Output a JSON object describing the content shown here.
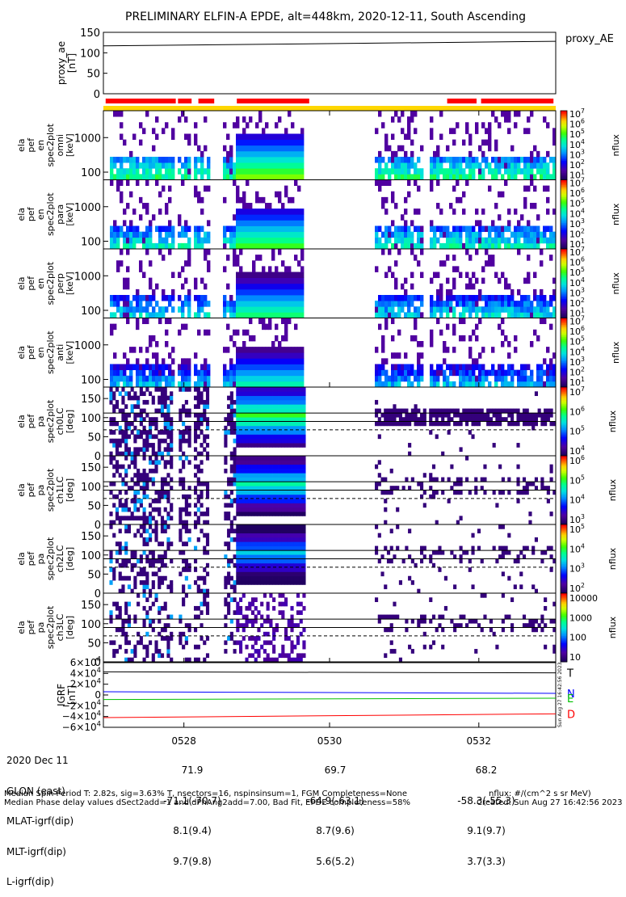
{
  "title": "PRELIMINARY ELFIN-A EPDE, alt=448km, 2020-12-11, South Ascending",
  "colors": {
    "bar_red": "#ff0000",
    "bar_yellow": "#ffd700",
    "T": "#000000",
    "N": "#0000ff",
    "E": "#00c000",
    "D": "#ff0000"
  },
  "chart_data": [
    {
      "type": "line",
      "panel": "proxy_ae",
      "ylabel": [
        "proxy_ae",
        "[nT]"
      ],
      "yticks": [
        "150",
        "100",
        "50",
        "0"
      ],
      "ylim": [
        0,
        150
      ],
      "series": [
        {
          "name": "proxy_AE",
          "x": [
            0,
            1
          ],
          "values": [
            117,
            128
          ]
        }
      ]
    },
    {
      "type": "heatmap",
      "panel": "energy spectrograms",
      "yscale": "log",
      "ylim": [
        60,
        6000
      ],
      "yticks": [
        "1000",
        "100"
      ],
      "ylabel": [
        "ela",
        "pef",
        "en",
        "spec2plot",
        "",
        "[keV]"
      ],
      "panel_subtitles": [
        "omni",
        "para",
        "perp",
        "anti"
      ],
      "colorbar": {
        "label": "nflux",
        "ticks": [
          "10^7",
          "10^6",
          "10^5",
          "10^4",
          "10^3",
          "10^2",
          "10^1"
        ]
      }
    },
    {
      "type": "heatmap",
      "panel": "pitch angle spectrograms",
      "ylim": [
        0,
        180
      ],
      "yticks": [
        "150",
        "100",
        "50",
        "0"
      ],
      "ylabel_prefix": [
        "ela",
        "pef",
        "pa",
        "spec2plot"
      ],
      "ylabel_unit": "[deg]",
      "channels": [
        "ch0LC",
        "ch1LC",
        "ch2LC",
        "ch3LC"
      ],
      "colorbars": [
        {
          "label": "nflux",
          "ticks": [
            "10^7",
            "10^6",
            "10^5",
            "10^4"
          ]
        },
        {
          "label": "nflux",
          "ticks": [
            "10^6",
            "10^5",
            "10^4",
            "10^3"
          ]
        },
        {
          "label": "nflux",
          "ticks": [
            "10^5",
            "10^4",
            "10^3",
            "10^2"
          ]
        },
        {
          "label": "nflux",
          "ticks": [
            "10000",
            "1000",
            "100",
            "10"
          ]
        }
      ]
    },
    {
      "type": "line",
      "panel": "IGRF",
      "ylabel": [
        "IGRF",
        "[nT]"
      ],
      "yticks": [
        "6×10^4",
        "4×10^4",
        "2×10^4",
        "0",
        "−2×10^4",
        "−4×10^4",
        "−6×10^4"
      ],
      "ylim": [
        -60000,
        60000
      ],
      "series": [
        {
          "name": "T",
          "x": [
            0,
            1
          ],
          "values": [
            43000,
            41000
          ]
        },
        {
          "name": "N",
          "x": [
            0,
            1
          ],
          "values": [
            6000,
            3000
          ]
        },
        {
          "name": "E",
          "x": [
            0,
            1
          ],
          "values": [
            -8500,
            -6000
          ]
        },
        {
          "name": "D",
          "x": [
            0,
            1
          ],
          "values": [
            -42000,
            -35000
          ]
        }
      ]
    }
  ],
  "x_ticks": [
    "0528",
    "0530",
    "0532"
  ],
  "created_vertical": "Sun Aug 27 16:42:56 2023",
  "info": {
    "labels": [
      "2020 Dec 11",
      "GLON (east)",
      "MLAT-igrf(dip)",
      "MLT-igrf(dip)",
      "L-igrf(dip)"
    ],
    "columns": [
      [
        "71.9",
        "-71.1(-70.7)",
        "8.1(9.4)",
        "9.7(9.8)"
      ],
      [
        "69.7",
        "-64.9(-63.1)",
        "8.7(9.6)",
        "5.6(5.2)"
      ],
      [
        "68.2",
        "-58.3(-55.3)",
        "9.1(9.7)",
        "3.7(3.3)"
      ]
    ]
  },
  "footer": {
    "left1": "Median Spin Period T: 2.82s, sig=3.63% T, nsectors=16, nspinsinsum=1, FGM Completeness=None",
    "left2": "Median Phase delay values dSect2add=1 and dPhAng2add=7.00, Bad Fit, EPDE completeness=58%",
    "right1": "nflux: #/(cm^2 s sr MeV)",
    "right2": "Created: Sun Aug 27 16:42:56 2023"
  }
}
